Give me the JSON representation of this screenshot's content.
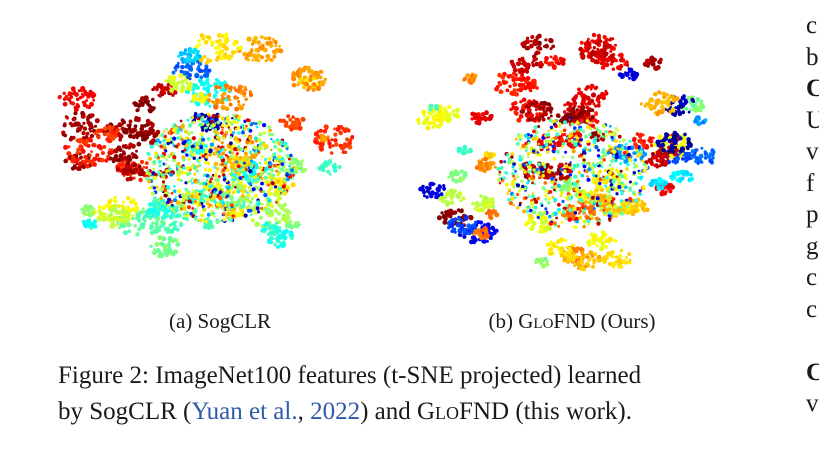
{
  "panels": [
    {
      "caption_prefix": "(a)",
      "caption_name": "SogCLR",
      "caption_suffix": ""
    },
    {
      "caption_prefix": "(b)",
      "caption_name": "GloFND",
      "caption_suffix": "(Ours)"
    }
  ],
  "figure_caption": {
    "label": "Figure 2:",
    "text_1": "ImageNet100 features (t-SNE projected) learned",
    "text_2a": "by SogCLR (",
    "cite_author": "Yuan et al.",
    "cite_sep": ", ",
    "cite_year": "2022",
    "text_2b": ") and ",
    "method": "GloFND",
    "text_2c": " (this work)."
  },
  "right_column_fragments": [
    "c",
    "b",
    "C",
    "U",
    "v",
    "f",
    "p",
    "g",
    "c",
    "c",
    "",
    "C",
    "v"
  ],
  "colors": {
    "citation": "#2f5aa8",
    "text": "#1a1a1a",
    "background": "#ffffff"
  }
}
